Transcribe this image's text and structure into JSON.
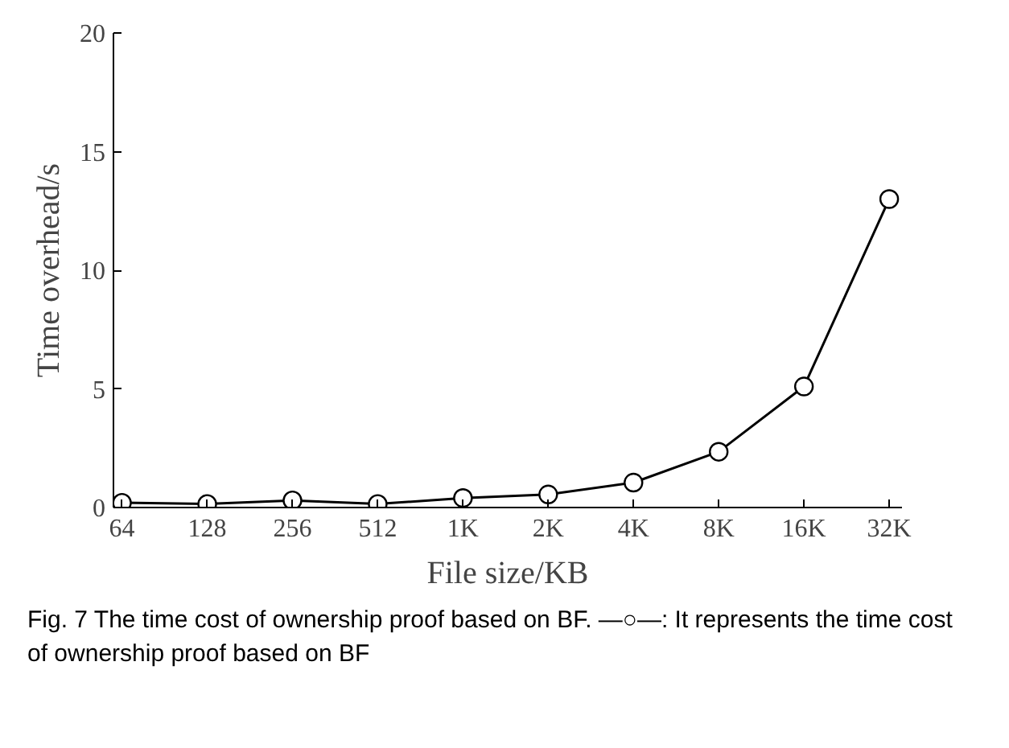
{
  "chart_data": {
    "type": "line",
    "xlabel": "File size/KB",
    "ylabel": "Time overhead/s",
    "categories": [
      "64",
      "128",
      "256",
      "512",
      "1K",
      "2K",
      "4K",
      "8K",
      "16K",
      "32K"
    ],
    "series": [
      {
        "color": "#000000",
        "values": [
          0.2,
          0.15,
          0.3,
          0.15,
          0.4,
          0.55,
          1.05,
          2.35,
          5.1,
          13.0
        ]
      }
    ],
    "ylim": [
      0,
      20
    ],
    "yticks": [
      0,
      5,
      10,
      15,
      20
    ],
    "grid": false,
    "marker": "circle",
    "line_style": "solid",
    "annotations": [
      "Fig. 7 The time cost of ownership proof based on BF. —○—: It represents the time cost of ownership proof based on BF"
    ]
  }
}
